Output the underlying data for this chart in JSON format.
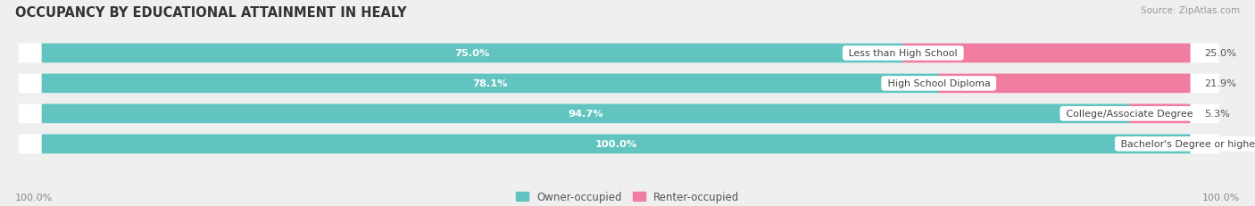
{
  "title": "OCCUPANCY BY EDUCATIONAL ATTAINMENT IN HEALY",
  "source": "Source: ZipAtlas.com",
  "categories": [
    "Less than High School",
    "High School Diploma",
    "College/Associate Degree",
    "Bachelor's Degree or higher"
  ],
  "owner_values": [
    75.0,
    78.1,
    94.7,
    100.0
  ],
  "renter_values": [
    25.0,
    21.9,
    5.3,
    0.0
  ],
  "owner_color": "#62c4c0",
  "renter_color": "#f07ca0",
  "bar_height": 0.62,
  "background_color": "#efefef",
  "bar_bg_color": "#ffffff",
  "title_fontsize": 10.5,
  "label_fontsize": 8.2,
  "source_fontsize": 7.5,
  "tick_fontsize": 8.0,
  "legend_fontsize": 8.5,
  "axis_label_left": "100.0%",
  "axis_label_right": "100.0%",
  "owner_label": "Owner-occupied",
  "renter_label": "Renter-occupied"
}
